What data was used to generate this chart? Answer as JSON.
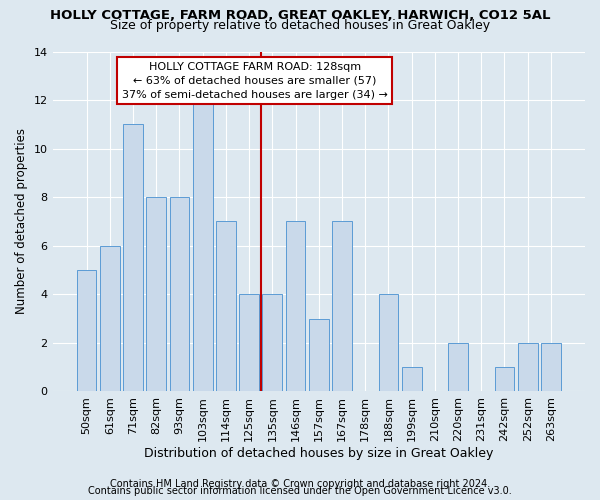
{
  "title": "HOLLY COTTAGE, FARM ROAD, GREAT OAKLEY, HARWICH, CO12 5AL",
  "subtitle": "Size of property relative to detached houses in Great Oakley",
  "xlabel": "Distribution of detached houses by size in Great Oakley",
  "ylabel": "Number of detached properties",
  "categories": [
    "50sqm",
    "61sqm",
    "71sqm",
    "82sqm",
    "93sqm",
    "103sqm",
    "114sqm",
    "125sqm",
    "135sqm",
    "146sqm",
    "157sqm",
    "167sqm",
    "178sqm",
    "188sqm",
    "199sqm",
    "210sqm",
    "220sqm",
    "231sqm",
    "242sqm",
    "252sqm",
    "263sqm"
  ],
  "values": [
    5,
    6,
    11,
    8,
    8,
    12,
    7,
    4,
    4,
    7,
    3,
    7,
    0,
    4,
    1,
    0,
    2,
    0,
    1,
    2,
    2
  ],
  "bar_color": "#c9d9ea",
  "bar_edge_color": "#5b9bd5",
  "vline_x_index": 7.5,
  "vline_color": "#c00000",
  "ylim": [
    0,
    14
  ],
  "yticks": [
    0,
    2,
    4,
    6,
    8,
    10,
    12,
    14
  ],
  "annotation_text": "HOLLY COTTAGE FARM ROAD: 128sqm\n← 63% of detached houses are smaller (57)\n37% of semi-detached houses are larger (34) →",
  "annotation_box_color": "#ffffff",
  "annotation_box_edge": "#c00000",
  "footer1": "Contains HM Land Registry data © Crown copyright and database right 2024.",
  "footer2": "Contains public sector information licensed under the Open Government Licence v3.0.",
  "bg_color": "#dde8f0",
  "plot_bg_color": "#dde8f0",
  "title_fontsize": 9.5,
  "subtitle_fontsize": 9,
  "xlabel_fontsize": 9,
  "ylabel_fontsize": 8.5,
  "tick_fontsize": 8,
  "footer_fontsize": 7,
  "annotation_fontsize": 8
}
